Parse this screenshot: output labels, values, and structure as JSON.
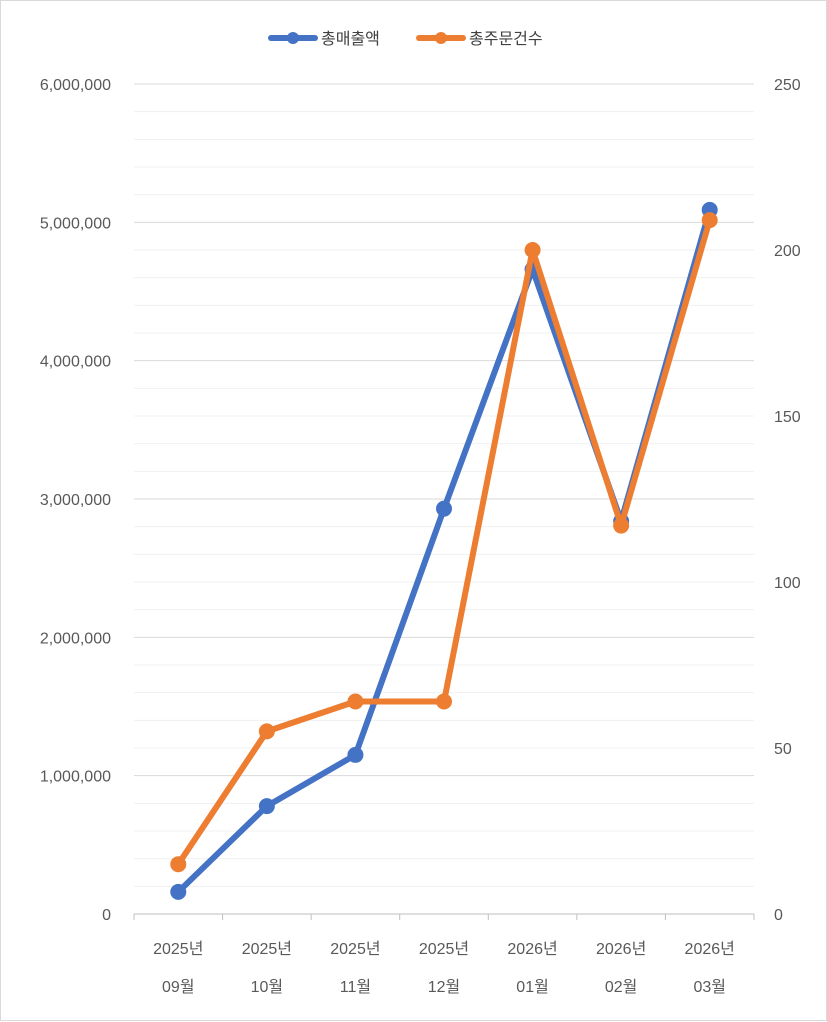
{
  "chart_data": {
    "type": "line",
    "categories": [
      [
        "2025년",
        "09월"
      ],
      [
        "2025년",
        "10월"
      ],
      [
        "2025년",
        "11월"
      ],
      [
        "2025년",
        "12월"
      ],
      [
        "2026년",
        "01월"
      ],
      [
        "2026년",
        "02월"
      ],
      [
        "2026년",
        "03월"
      ]
    ],
    "series": [
      {
        "name": "총매출액",
        "axis": "left",
        "color": "#4472C4",
        "values": [
          160000,
          780000,
          1150000,
          2930000,
          4660000,
          2840000,
          5090000
        ]
      },
      {
        "name": "총주문건수",
        "axis": "right",
        "color": "#ED7D31",
        "values": [
          15,
          55,
          64,
          64,
          200,
          117,
          209
        ]
      }
    ],
    "y_left": {
      "min": 0,
      "max": 6000000,
      "ticks": [
        0,
        1000000,
        2000000,
        3000000,
        4000000,
        5000000,
        6000000
      ],
      "tick_labels": [
        "0",
        "1,000,000",
        "2,000,000",
        "3,000,000",
        "4,000,000",
        "5,000,000",
        "6,000,000"
      ]
    },
    "y_right": {
      "min": 0,
      "max": 250,
      "ticks": [
        0,
        50,
        100,
        150,
        200,
        250
      ],
      "tick_labels": [
        "0",
        "50",
        "100",
        "150",
        "200",
        "250"
      ]
    },
    "minor_gridlines": 5,
    "grid": true,
    "legend_position": "top-center"
  }
}
